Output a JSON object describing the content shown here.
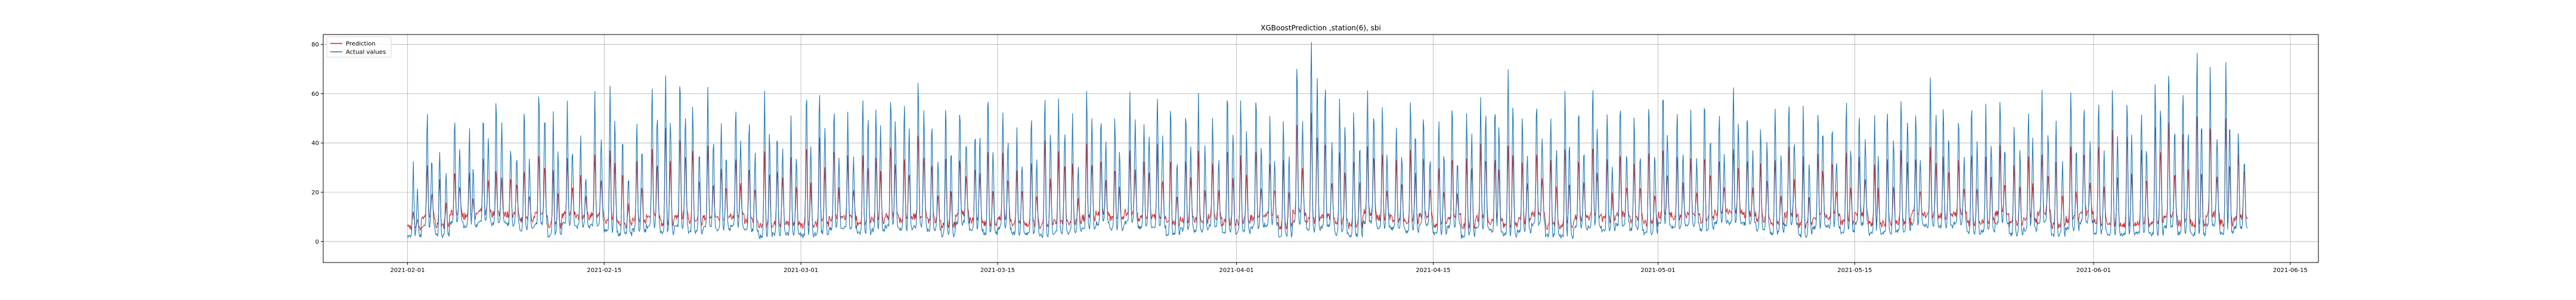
{
  "chart_data": {
    "type": "line",
    "title": "XGBoostPrediction ,station(6), sbi",
    "xlabel": "",
    "ylabel": "",
    "x_range": [
      "2021-01-26",
      "2021-06-17"
    ],
    "data_range": [
      "2021-02-01",
      "2021-06-11"
    ],
    "ylim": [
      -8.5,
      84
    ],
    "y_ticks": [
      0,
      20,
      40,
      60,
      80
    ],
    "x_ticks": [
      "2021-02-01",
      "2021-02-15",
      "2021-03-01",
      "2021-03-15",
      "2021-04-01",
      "2021-04-15",
      "2021-05-01",
      "2021-05-15",
      "2021-06-01",
      "2021-06-15"
    ],
    "grid": true,
    "legend_position": "upper-left",
    "series": [
      {
        "name": "Prediction",
        "color": "#d62728"
      },
      {
        "name": "Actual values",
        "color": "#1f77b4"
      }
    ],
    "daily_peaks_note": "",
    "daily_peaks": [
      [
        "2021-02-01",
        30,
        12
      ],
      [
        "2021-02-02",
        52,
        33
      ],
      [
        "2021-02-03",
        40,
        25
      ],
      [
        "2021-02-04",
        50,
        30
      ],
      [
        "2021-02-05",
        45,
        28
      ],
      [
        "2021-02-06",
        52,
        35
      ],
      [
        "2021-02-07",
        56,
        30
      ],
      [
        "2021-02-08",
        40,
        28
      ],
      [
        "2021-02-09",
        52,
        32
      ],
      [
        "2021-02-10",
        62,
        38
      ],
      [
        "2021-02-11",
        50,
        30
      ],
      [
        "2021-02-12",
        55,
        34
      ],
      [
        "2021-02-13",
        42,
        28
      ],
      [
        "2021-02-14",
        58,
        36
      ],
      [
        "2021-02-15",
        60,
        40
      ],
      [
        "2021-02-16",
        45,
        30
      ],
      [
        "2021-02-17",
        52,
        34
      ],
      [
        "2021-02-18",
        66,
        40
      ],
      [
        "2021-02-19",
        70,
        50
      ],
      [
        "2021-02-20",
        65,
        45
      ],
      [
        "2021-02-21",
        55,
        40
      ],
      [
        "2021-02-22",
        63,
        42
      ],
      [
        "2021-02-23",
        48,
        32
      ],
      [
        "2021-02-24",
        57,
        36
      ],
      [
        "2021-02-25",
        50,
        32
      ],
      [
        "2021-02-26",
        58,
        38
      ],
      [
        "2021-02-27",
        44,
        30
      ],
      [
        "2021-02-28",
        52,
        35
      ],
      [
        "2021-03-01",
        60,
        42
      ],
      [
        "2021-03-02",
        62,
        44
      ],
      [
        "2021-03-03",
        55,
        40
      ],
      [
        "2021-03-04",
        50,
        35
      ],
      [
        "2021-03-05",
        58,
        38
      ],
      [
        "2021-03-06",
        53,
        36
      ],
      [
        "2021-03-07",
        62,
        40
      ],
      [
        "2021-03-08",
        55,
        36
      ],
      [
        "2021-03-09",
        68,
        45
      ],
      [
        "2021-03-10",
        50,
        34
      ],
      [
        "2021-03-11",
        58,
        38
      ],
      [
        "2021-03-12",
        55,
        36
      ],
      [
        "2021-03-13",
        48,
        32
      ],
      [
        "2021-03-14",
        60,
        40
      ],
      [
        "2021-03-15",
        56,
        38
      ],
      [
        "2021-03-16",
        45,
        30
      ],
      [
        "2021-03-17",
        52,
        34
      ],
      [
        "2021-03-18",
        60,
        42
      ],
      [
        "2021-03-19",
        55,
        38
      ],
      [
        "2021-03-20",
        50,
        34
      ],
      [
        "2021-03-21",
        62,
        40
      ],
      [
        "2021-03-22",
        54,
        36
      ],
      [
        "2021-03-23",
        48,
        32
      ],
      [
        "2021-03-24",
        58,
        38
      ],
      [
        "2021-03-25",
        50,
        34
      ],
      [
        "2021-03-26",
        60,
        40
      ],
      [
        "2021-03-27",
        56,
        36
      ],
      [
        "2021-03-28",
        52,
        35
      ],
      [
        "2021-03-29",
        58,
        38
      ],
      [
        "2021-03-30",
        50,
        34
      ],
      [
        "2021-03-31",
        62,
        40
      ],
      [
        "2021-04-01",
        55,
        36
      ],
      [
        "2021-04-02",
        60,
        40
      ],
      [
        "2021-04-03",
        48,
        32
      ],
      [
        "2021-04-04",
        52,
        35
      ],
      [
        "2021-04-05",
        72,
        50
      ],
      [
        "2021-04-06",
        80,
        56
      ],
      [
        "2021-04-07",
        65,
        44
      ],
      [
        "2021-04-08",
        58,
        38
      ],
      [
        "2021-04-09",
        52,
        35
      ],
      [
        "2021-04-10",
        60,
        40
      ],
      [
        "2021-04-11",
        55,
        36
      ],
      [
        "2021-04-12",
        50,
        34
      ],
      [
        "2021-04-13",
        58,
        38
      ],
      [
        "2021-04-14",
        54,
        36
      ],
      [
        "2021-04-15",
        48,
        32
      ],
      [
        "2021-04-16",
        56,
        36
      ],
      [
        "2021-04-17",
        52,
        35
      ],
      [
        "2021-04-18",
        60,
        40
      ],
      [
        "2021-04-19",
        55,
        36
      ],
      [
        "2021-04-20",
        68,
        42
      ],
      [
        "2021-04-21",
        50,
        34
      ],
      [
        "2021-04-22",
        58,
        38
      ],
      [
        "2021-04-23",
        52,
        35
      ],
      [
        "2021-04-24",
        60,
        40
      ],
      [
        "2021-04-25",
        54,
        36
      ],
      [
        "2021-04-26",
        64,
        42
      ],
      [
        "2021-04-27",
        50,
        34
      ],
      [
        "2021-04-28",
        56,
        36
      ],
      [
        "2021-04-29",
        48,
        32
      ],
      [
        "2021-04-30",
        58,
        38
      ],
      [
        "2021-05-01",
        62,
        40
      ],
      [
        "2021-05-02",
        55,
        36
      ],
      [
        "2021-05-03",
        50,
        34
      ],
      [
        "2021-05-04",
        57,
        38
      ],
      [
        "2021-05-05",
        52,
        35
      ],
      [
        "2021-05-06",
        60,
        40
      ],
      [
        "2021-05-07",
        54,
        36
      ],
      [
        "2021-05-08",
        48,
        32
      ],
      [
        "2021-05-09",
        56,
        36
      ],
      [
        "2021-05-10",
        60,
        40
      ],
      [
        "2021-05-11",
        52,
        35
      ],
      [
        "2021-05-12",
        55,
        36
      ],
      [
        "2021-05-13",
        50,
        34
      ],
      [
        "2021-05-14",
        58,
        38
      ],
      [
        "2021-05-15",
        54,
        36
      ],
      [
        "2021-05-16",
        48,
        32
      ],
      [
        "2021-05-17",
        56,
        36
      ],
      [
        "2021-05-18",
        60,
        40
      ],
      [
        "2021-05-19",
        52,
        35
      ],
      [
        "2021-05-20",
        66,
        40
      ],
      [
        "2021-05-21",
        55,
        36
      ],
      [
        "2021-05-22",
        50,
        34
      ],
      [
        "2021-05-23",
        58,
        38
      ],
      [
        "2021-05-24",
        52,
        35
      ],
      [
        "2021-05-25",
        60,
        40
      ],
      [
        "2021-05-26",
        48,
        32
      ],
      [
        "2021-05-27",
        55,
        36
      ],
      [
        "2021-05-28",
        58,
        38
      ],
      [
        "2021-05-29",
        50,
        34
      ],
      [
        "2021-05-30",
        62,
        40
      ],
      [
        "2021-05-31",
        55,
        38
      ],
      [
        "2021-06-01",
        58,
        42
      ],
      [
        "2021-06-02",
        63,
        48
      ],
      [
        "2021-06-03",
        60,
        45
      ],
      [
        "2021-06-04",
        55,
        40
      ],
      [
        "2021-06-05",
        66,
        50
      ],
      [
        "2021-06-06",
        73,
        52
      ],
      [
        "2021-06-07",
        60,
        46
      ],
      [
        "2021-06-08",
        76,
        55
      ],
      [
        "2021-06-09",
        70,
        50
      ],
      [
        "2021-06-10",
        72,
        52
      ],
      [
        "2021-06-11",
        44,
        38
      ]
    ]
  }
}
